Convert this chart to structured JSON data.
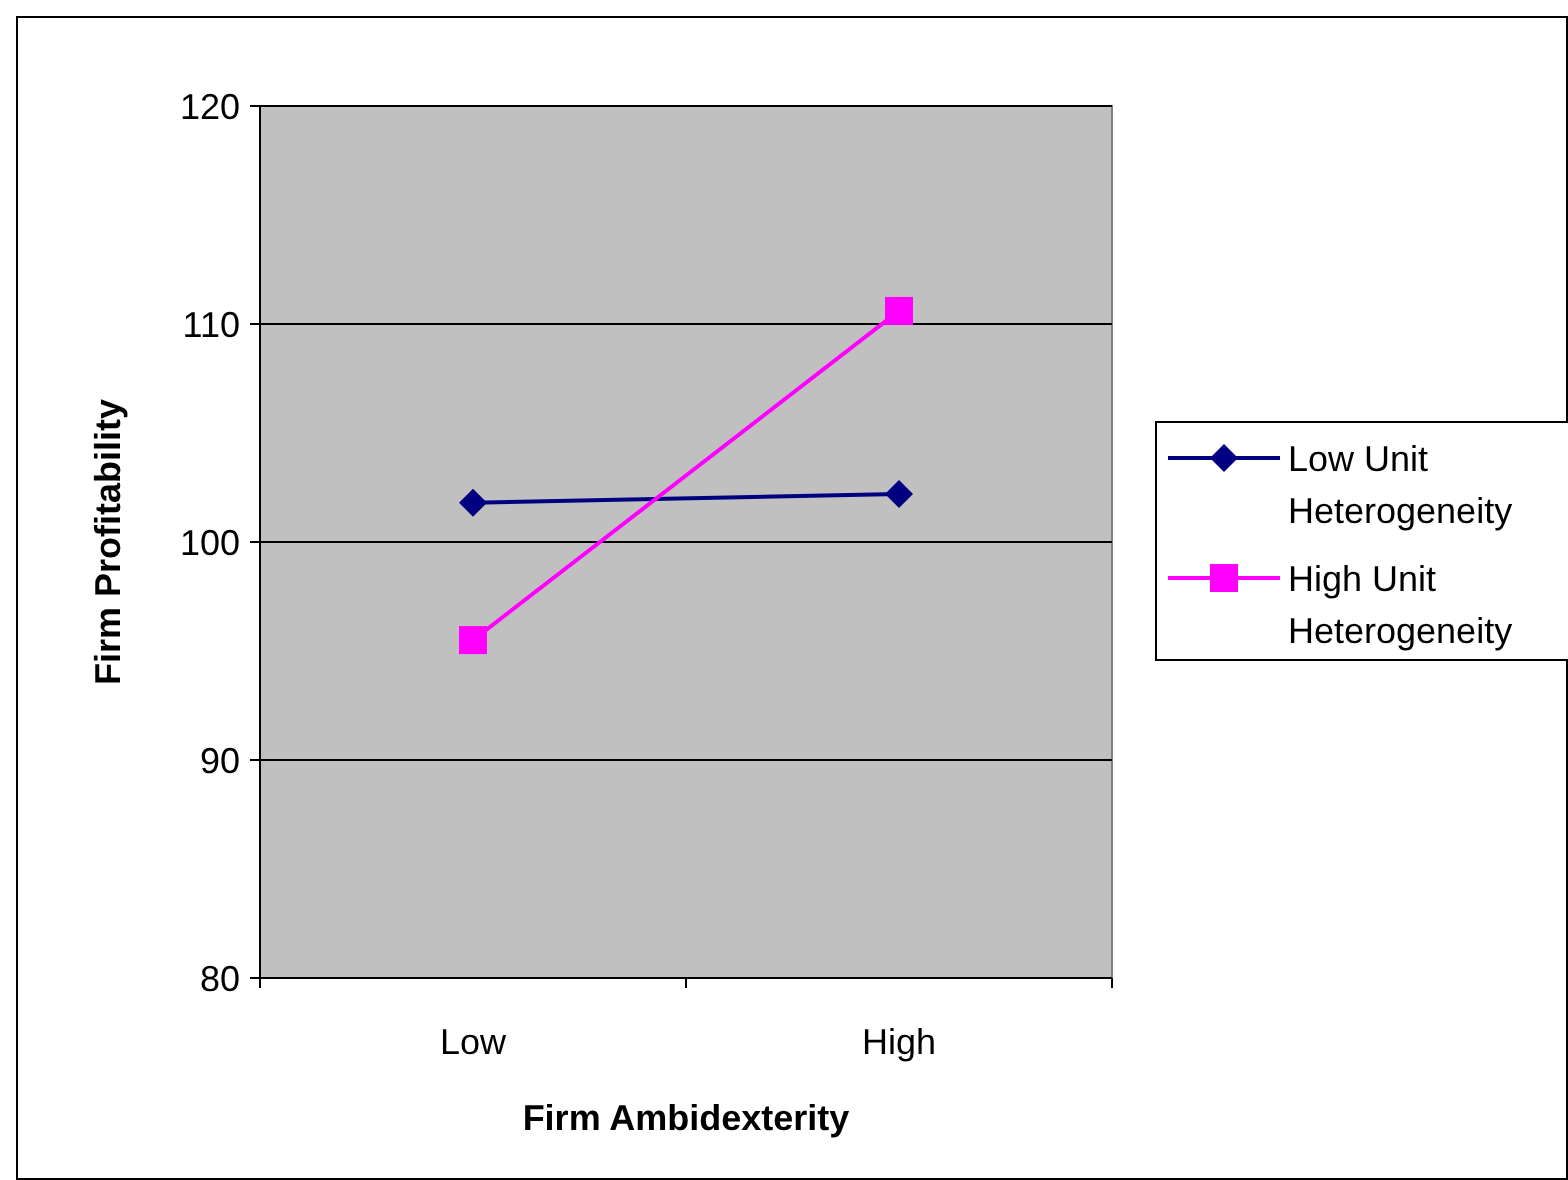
{
  "chart_data": {
    "type": "line",
    "xlabel": "Firm Ambidexterity",
    "ylabel": "Firm Profitability",
    "categories": [
      "Low",
      "High"
    ],
    "series": [
      {
        "name": "Low Unit Heterogeneity",
        "color": "#000080",
        "values": [
          101.8,
          102.2
        ],
        "marker": "diamond"
      },
      {
        "name": "High Unit Heterogeneity",
        "color": "#ff00ff",
        "values": [
          95.5,
          110.6
        ],
        "marker": "square"
      }
    ],
    "ylim": [
      80,
      120
    ],
    "yticks": [
      80,
      90,
      100,
      110,
      120
    ],
    "grid": "y",
    "legend": "right"
  }
}
